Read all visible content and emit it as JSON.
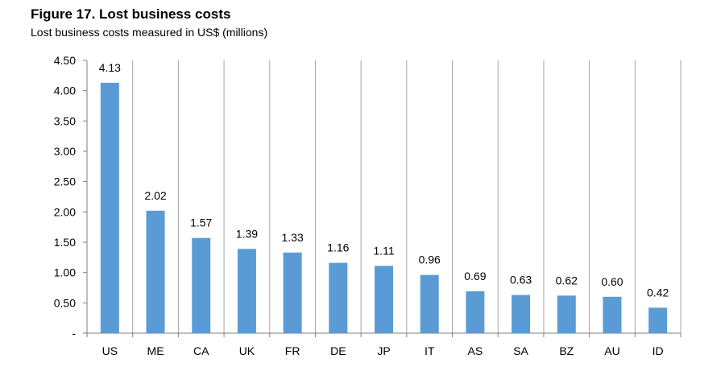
{
  "header": {
    "title": "Figure 17. Lost business costs",
    "subtitle": "Lost business costs measured in US$ (millions)"
  },
  "chart_data": {
    "type": "bar",
    "title": "Figure 17. Lost business costs",
    "subtitle": "Lost business costs measured in US$ (millions)",
    "xlabel": "",
    "ylabel": "",
    "categories": [
      "US",
      "ME",
      "CA",
      "UK",
      "FR",
      "DE",
      "JP",
      "IT",
      "AS",
      "SA",
      "BZ",
      "AU",
      "ID"
    ],
    "values": [
      4.13,
      2.02,
      1.57,
      1.39,
      1.33,
      1.16,
      1.11,
      0.96,
      0.69,
      0.63,
      0.62,
      0.6,
      0.42
    ],
    "value_labels": [
      "4.13",
      "2.02",
      "1.57",
      "1.39",
      "1.33",
      "1.16",
      "1.11",
      "0.96",
      "0.69",
      "0.63",
      "0.62",
      "0.60",
      "0.42"
    ],
    "ylim": [
      0,
      4.5
    ],
    "y_ticks": [
      0,
      0.5,
      1.0,
      1.5,
      2.0,
      2.5,
      3.0,
      3.5,
      4.0,
      4.5
    ],
    "y_tick_labels": [
      "-",
      "0.50",
      "1.00",
      "1.50",
      "2.00",
      "2.50",
      "3.00",
      "3.50",
      "4.00",
      "4.50"
    ],
    "bar_color": "#5B9BD5",
    "grid": "vertical separators between categories",
    "legend": "none"
  }
}
